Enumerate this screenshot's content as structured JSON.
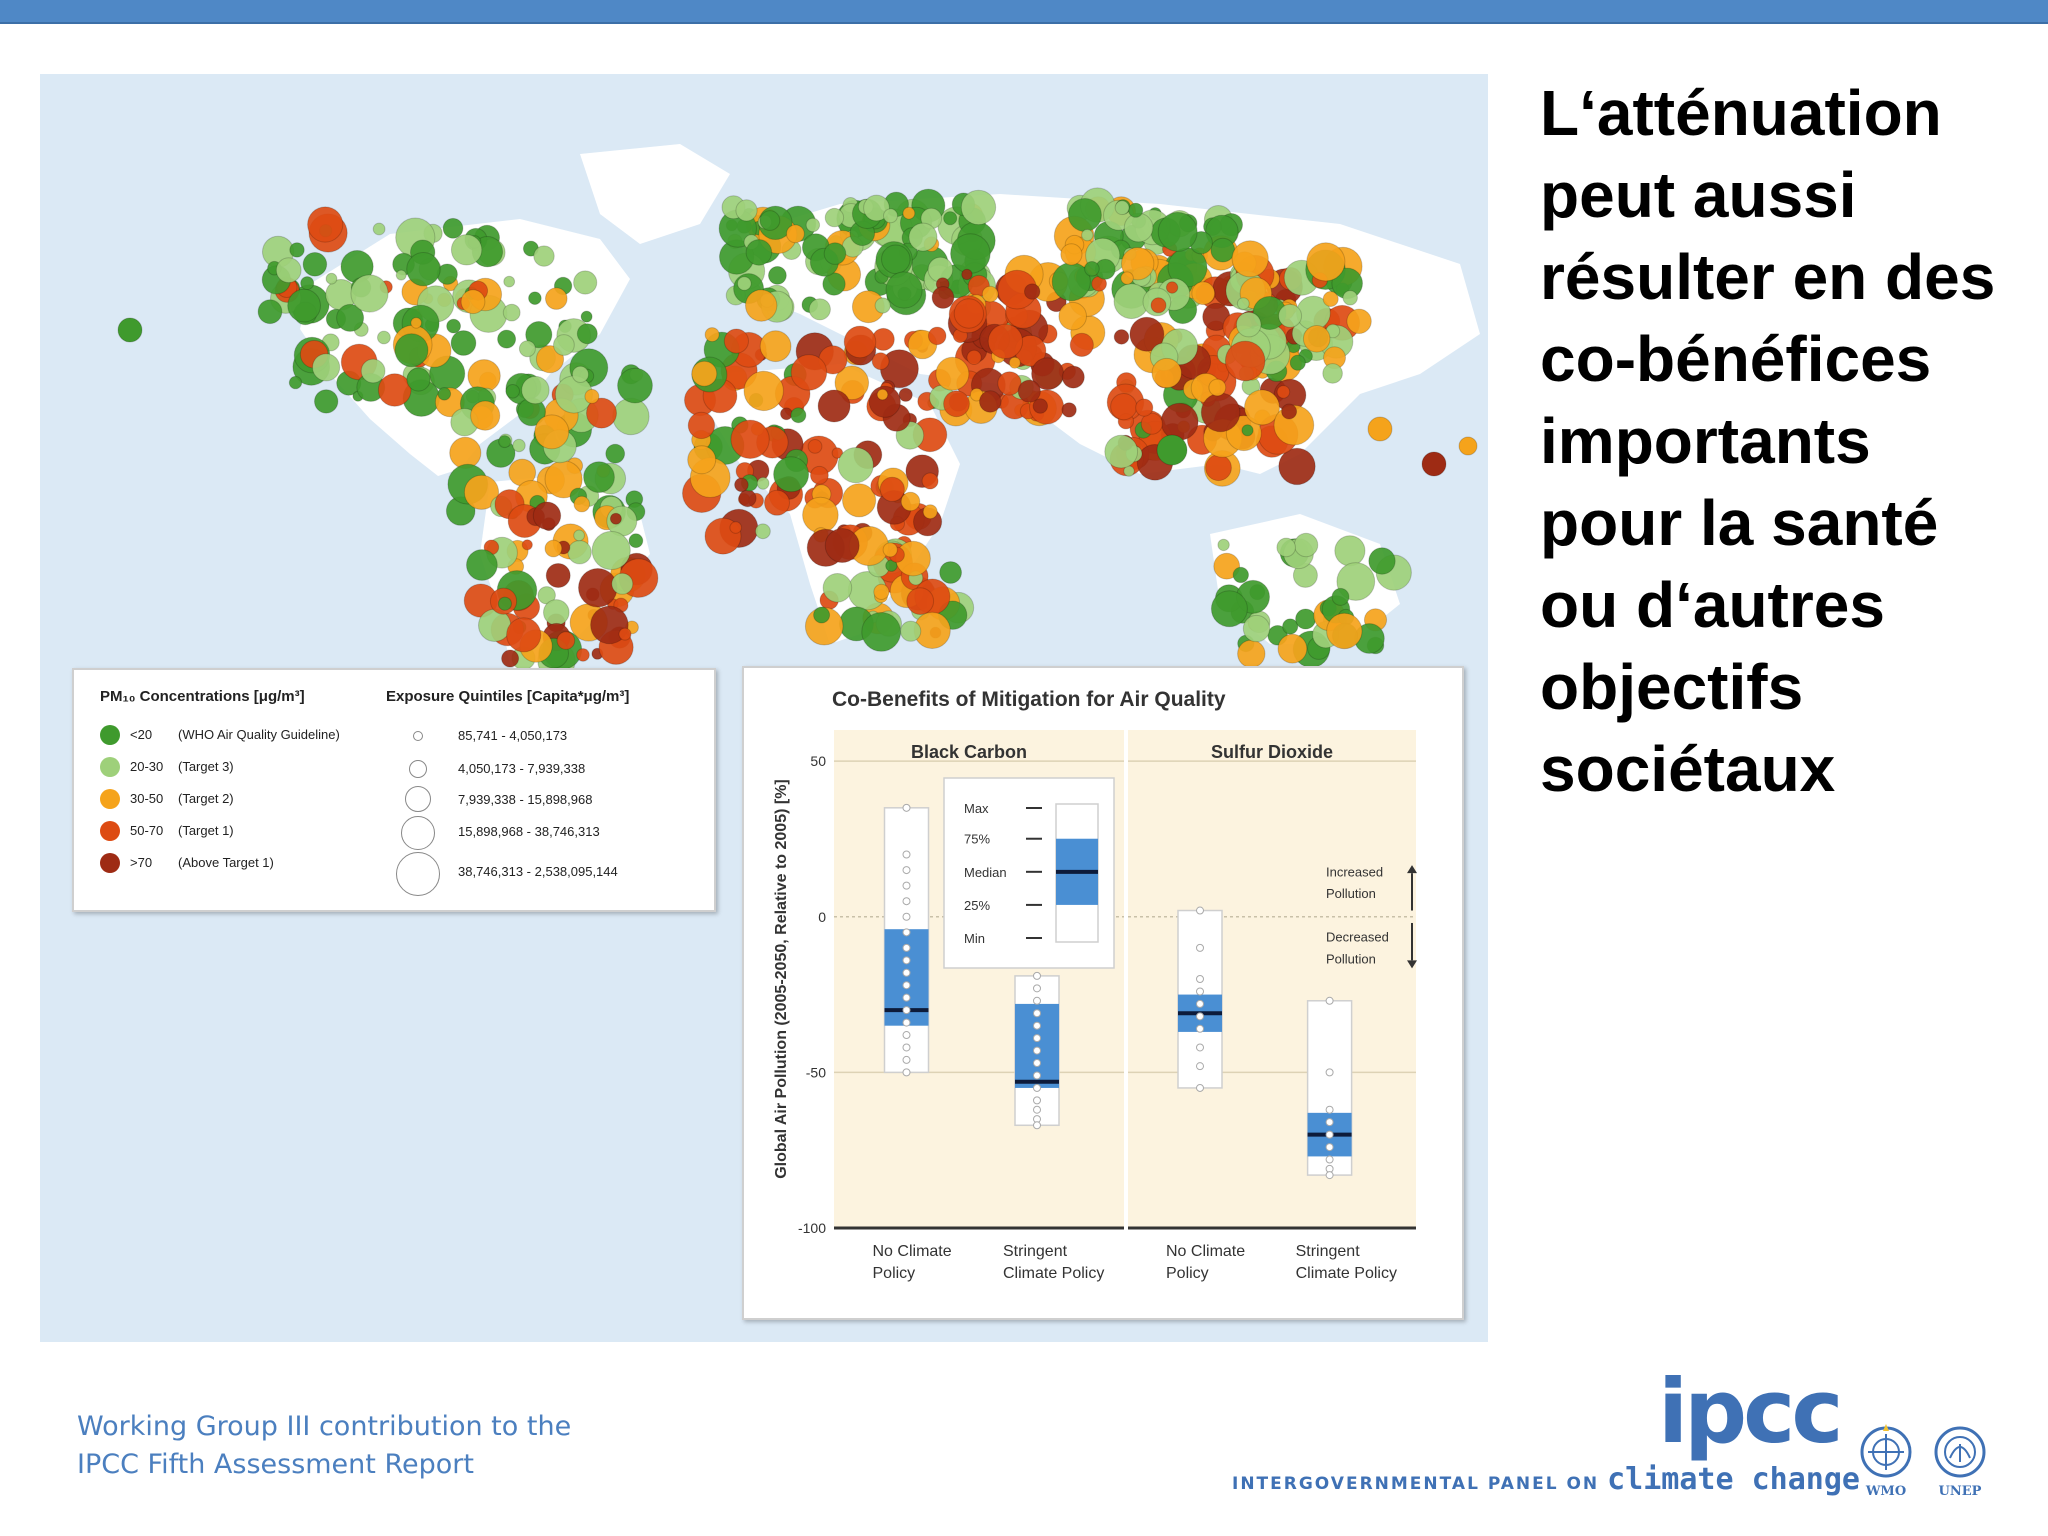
{
  "slide": {
    "title": "L‘atténuation peut aussi résulter en des co-bénéfices importants pour la santé ou d‘autres objectifs sociétaux",
    "footer_line1": "Working Group III contribution to the",
    "footer_line2": "IPCC Fifth Assessment Report",
    "logo_text": "ipcc",
    "logo_subtitle_small": "INTERGOVERNMENTAL PANEL ON",
    "logo_subtitle_large": "climate change",
    "agency_logos": [
      "WMO",
      "UNEP"
    ]
  },
  "colors": {
    "ocean": "#dbe9f5",
    "land": "#ffffff",
    "lt20": "#3f9a2d",
    "c20_30": "#9ed07a",
    "c30_50": "#f5a31b",
    "c50_70": "#dd4b12",
    "gt70": "#9e2b14",
    "box_fill": "#4a8fd3",
    "panel_bg": "#fcf3df",
    "accent_bar": "#4f88c6",
    "ipcc_blue": "#3f71b5"
  },
  "map_legend": {
    "conc_heading": "PM₁₀ Concentrations [μg/m³]",
    "conc_items": [
      {
        "range": "<20",
        "label": "(WHO Air Quality Guideline)",
        "color": "#3f9a2d"
      },
      {
        "range": "20-30",
        "label": "(Target 3)",
        "color": "#9ed07a"
      },
      {
        "range": "30-50",
        "label": "(Target 2)",
        "color": "#f5a31b"
      },
      {
        "range": "50-70",
        "label": "(Target 1)",
        "color": "#dd4b12"
      },
      {
        "range": ">70",
        "label": "(Above Target 1)",
        "color": "#9e2b14"
      }
    ],
    "exposure_heading": "Exposure Quintiles [Capita*μg/m³]",
    "exposure_items": [
      "85,741 - 4,050,173",
      "4,050,173 - 7,939,338",
      "7,939,338 - 15,898,968",
      "15,898,968 - 38,746,313",
      "38,746,313 - 2,538,095,144"
    ]
  },
  "chart_data": {
    "type": "boxplot",
    "title": "Co-Benefits of Mitigation for Air Quality",
    "ylabel": "Global Air Pollution (2005-2050, Relative to 2005) [%]",
    "ylim": [
      -100,
      60
    ],
    "yticks": [
      50,
      0,
      -50,
      -100
    ],
    "panels": [
      {
        "name": "Black Carbon",
        "categories": [
          "No Climate Policy",
          "Stringent Climate Policy"
        ],
        "boxes": [
          {
            "max": 35,
            "q3": -4,
            "median": -30,
            "q1": -35,
            "min": -50,
            "points": [
              35,
              20,
              15,
              10,
              5,
              0,
              -5,
              -10,
              -14,
              -18,
              -22,
              -26,
              -30,
              -34,
              -38,
              -42,
              -46,
              -50
            ]
          },
          {
            "max": -19,
            "q3": -28,
            "median": -53,
            "q1": -55,
            "min": -67,
            "points": [
              -19,
              -23,
              -27,
              -31,
              -35,
              -39,
              -43,
              -47,
              -51,
              -55,
              -59,
              -62,
              -65,
              -67
            ]
          }
        ]
      },
      {
        "name": "Sulfur Dioxide",
        "categories": [
          "No Climate Policy",
          "Stringent Climate Policy"
        ],
        "boxes": [
          {
            "max": 2,
            "q3": -25,
            "median": -31,
            "q1": -37,
            "min": -55,
            "points": [
              2,
              -10,
              -20,
              -24,
              -28,
              -32,
              -36,
              -42,
              -48,
              -55
            ]
          },
          {
            "max": -27,
            "q3": -63,
            "median": -70,
            "q1": -77,
            "min": -83,
            "points": [
              -27,
              -50,
              -62,
              -66,
              -70,
              -74,
              -78,
              -81,
              -83
            ]
          }
        ]
      }
    ],
    "inset_key": [
      "Max",
      "75%",
      "Median",
      "25%",
      "Min"
    ],
    "annotations": {
      "up_line1": "Increased",
      "up_line2": "Pollution",
      "down_line1": "Decreased",
      "down_line2": "Pollution"
    }
  }
}
